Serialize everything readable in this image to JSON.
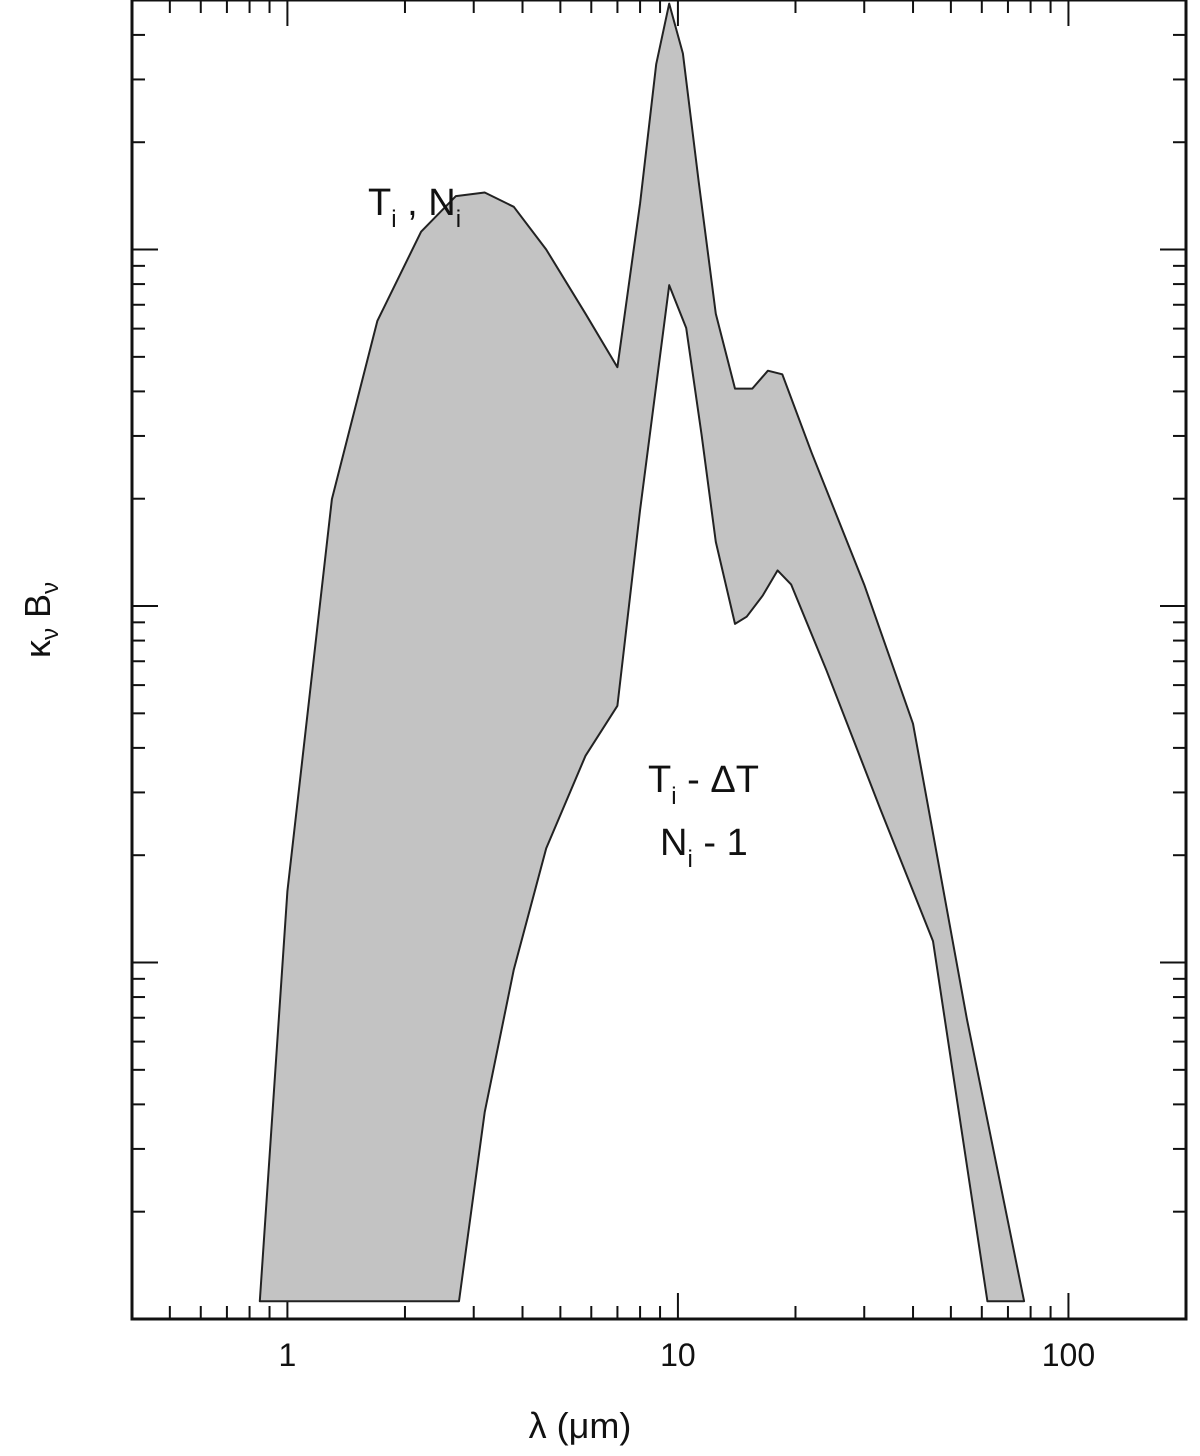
{
  "chart_data": {
    "type": "area",
    "xlabel": "λ (μm)",
    "ylabel": {
      "base": "κ",
      "sub1": "ν",
      "mid": " B",
      "sub2": "ν"
    },
    "x_scale": "log",
    "y_scale": "log",
    "xlim": [
      0.4,
      200
    ],
    "ylim_decades": [
      0,
      3.7
    ],
    "x_ticks": [
      {
        "value": 1,
        "label": "1"
      },
      {
        "value": 10,
        "label": "10"
      },
      {
        "value": 100,
        "label": "100"
      }
    ],
    "grid": false,
    "legend": "none",
    "series": [
      {
        "role": "upper",
        "x": [
          0.85,
          1.0,
          1.3,
          1.7,
          2.2,
          2.7,
          3.2,
          3.8,
          4.6,
          5.8,
          7.0,
          8.0,
          8.8,
          9.5,
          10.3,
          11.3,
          12.5,
          14.0,
          15.5,
          17.0,
          18.5,
          22,
          30,
          40,
          55,
          77
        ],
        "y": [
          0.05,
          1.2,
          2.3,
          2.8,
          3.05,
          3.15,
          3.16,
          3.12,
          3.0,
          2.82,
          2.67,
          3.13,
          3.52,
          3.69,
          3.55,
          3.19,
          2.82,
          2.61,
          2.61,
          2.66,
          2.65,
          2.43,
          2.06,
          1.67,
          0.84,
          0.05
        ]
      },
      {
        "role": "lower",
        "x": [
          2.75,
          3.2,
          3.8,
          4.6,
          5.8,
          7.0,
          8.0,
          9.5,
          10.5,
          11.5,
          12.5,
          14.0,
          15.0,
          16.5,
          18.0,
          19.5,
          24,
          33,
          45,
          62
        ],
        "y": [
          0.05,
          0.58,
          0.98,
          1.32,
          1.58,
          1.72,
          2.27,
          2.9,
          2.78,
          2.48,
          2.18,
          1.95,
          1.97,
          2.03,
          2.1,
          2.06,
          1.82,
          1.43,
          1.06,
          0.05
        ]
      }
    ],
    "annotations": [
      {
        "id": "upper",
        "line1": {
          "base": "T",
          "sub": "i",
          "rest": " , N",
          "sub2": "i"
        }
      },
      {
        "id": "lower",
        "line1": {
          "base": "T",
          "sub": "i",
          "rest": " - ΔT"
        },
        "line2": {
          "base": "N",
          "sub": "i",
          "rest": " - 1"
        }
      }
    ],
    "fill_color": "#c3c3c3",
    "line_color": "#222222"
  }
}
